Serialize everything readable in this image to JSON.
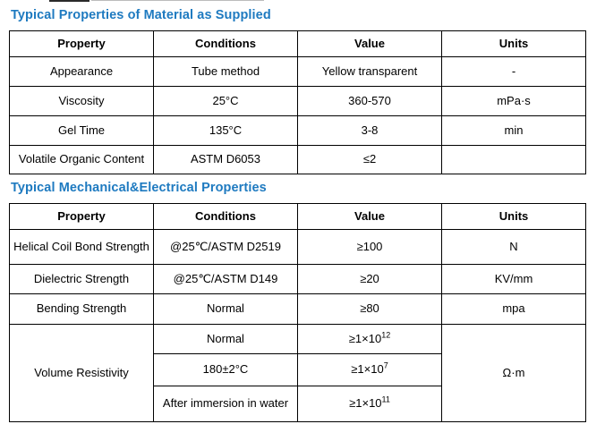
{
  "page": {
    "section1_title": "Typical Properties of Material as Supplied",
    "section2_title": "Typical Mechanical&Electrical Properties"
  },
  "colors": {
    "title_blue": "#1e7ac0",
    "border": "#000000",
    "text": "#000000",
    "background": "#ffffff"
  },
  "table1": {
    "headers": [
      "Property",
      "Conditions",
      "Value",
      "Units"
    ],
    "rows": [
      {
        "property": "Appearance",
        "conditions": "Tube method",
        "value": "Yellow transparent",
        "units": "-"
      },
      {
        "property": "Viscosity",
        "conditions": "25°C",
        "value": "360-570",
        "units": "mPa·s"
      },
      {
        "property": "Gel Time",
        "conditions": "135°C",
        "value": "3-8",
        "units": "min"
      },
      {
        "property": "Volatile Organic Content",
        "conditions": "ASTM D6053",
        "value": "≤2",
        "units": ""
      }
    ]
  },
  "table2": {
    "headers": [
      "Property",
      "Conditions",
      "Value",
      "Units"
    ],
    "rows": [
      {
        "property": "Helical Coil Bond Strength",
        "conditions": "@25℃/ASTM D2519",
        "value": "≥100",
        "units": "N"
      },
      {
        "property": "Dielectric Strength",
        "conditions": "@25℃/ASTM D149",
        "value": "≥20",
        "units": "KV/mm"
      },
      {
        "property": "Bending Strength",
        "conditions": "Normal",
        "value": "≥80",
        "units": "mpa"
      }
    ],
    "volume_resistivity": {
      "property": "Volume Resistivity",
      "units": "Ω·m",
      "subrows": [
        {
          "conditions": "Normal",
          "value_base": "≥1×10",
          "value_sup": "12"
        },
        {
          "conditions": "180±2°C",
          "value_base": "≥1×10",
          "value_sup": "7"
        },
        {
          "conditions": "After immersion in water",
          "value_base": "≥1×10",
          "value_sup": "11"
        }
      ]
    }
  }
}
